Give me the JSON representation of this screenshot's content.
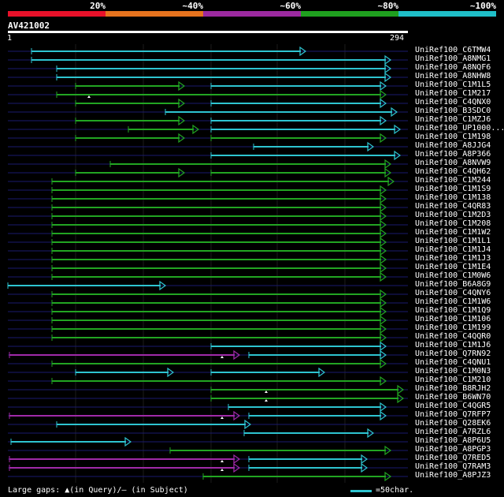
{
  "legend": {
    "colors": [
      "#e8112a",
      "#e6731e",
      "#9c2aa0",
      "#1fa01f",
      "#1fbfc8"
    ],
    "labels": [
      "20%",
      "~40%",
      "~60%",
      "~80%",
      "~100%"
    ]
  },
  "query": {
    "name": "AV421002",
    "start": "1",
    "end": "294"
  },
  "colors": {
    "cyan": "#2ec4d0",
    "green": "#22a522",
    "magenta": "#a02aa8",
    "gap": "#1a1a6e",
    "grid": "#1c1c1c"
  },
  "hits": [
    {
      "name": "UniRef100_C6TMW4",
      "segs": [
        [
          "cyan",
          40,
          388
        ]
      ]
    },
    {
      "name": "UniRef100_A8NMG1",
      "segs": [
        [
          "cyan",
          40,
          496
        ]
      ]
    },
    {
      "name": "UniRef100_A8NQF6",
      "segs": [
        [
          "cyan",
          72,
          496
        ]
      ]
    },
    {
      "name": "UniRef100_A8NHW8",
      "segs": [
        [
          "cyan",
          72,
          496
        ]
      ]
    },
    {
      "name": "UniRef100_C1M1L5",
      "segs": [
        [
          "green",
          96,
          234
        ],
        [
          "cyan",
          268,
          490
        ]
      ]
    },
    {
      "name": "UniRef100_C1M217",
      "segs": [
        [
          "green",
          72,
          490
        ]
      ],
      "marks": [
        113
      ]
    },
    {
      "name": "UniRef100_C4QNX0",
      "segs": [
        [
          "green",
          96,
          234
        ],
        [
          "cyan",
          268,
          490
        ]
      ]
    },
    {
      "name": "UniRef100_B3SDC0",
      "segs": [
        [
          "cyan",
          210,
          504
        ]
      ]
    },
    {
      "name": "UniRef100_C1MZJ6",
      "segs": [
        [
          "green",
          96,
          234
        ],
        [
          "cyan",
          268,
          490
        ]
      ]
    },
    {
      "name": "UniRef100_UP1000...",
      "segs": [
        [
          "green",
          163,
          252
        ],
        [
          "cyan",
          268,
          508
        ]
      ]
    },
    {
      "name": "UniRef100_C1M198",
      "segs": [
        [
          "green",
          96,
          234
        ],
        [
          "green",
          268,
          490
        ]
      ]
    },
    {
      "name": "UniRef100_A8JJG4",
      "segs": [
        [
          "cyan",
          322,
          474
        ]
      ]
    },
    {
      "name": "UniRef100_A8P366",
      "segs": [
        [
          "cyan",
          268,
          508
        ]
      ]
    },
    {
      "name": "UniRef100_A8NVW9",
      "segs": [
        [
          "green",
          140,
          496
        ]
      ]
    },
    {
      "name": "UniRef100_C4QH62",
      "segs": [
        [
          "green",
          96,
          234
        ],
        [
          "green",
          268,
          496
        ]
      ]
    },
    {
      "name": "UniRef100_C1M244",
      "segs": [
        [
          "green",
          66,
          500
        ]
      ]
    },
    {
      "name": "UniRef100_C1M1S9",
      "segs": [
        [
          "green",
          66,
          490
        ]
      ]
    },
    {
      "name": "UniRef100_C1M138",
      "segs": [
        [
          "green",
          66,
          490
        ]
      ]
    },
    {
      "name": "UniRef100_C4QR83",
      "segs": [
        [
          "green",
          66,
          490
        ]
      ]
    },
    {
      "name": "UniRef100_C1M2D3",
      "segs": [
        [
          "green",
          66,
          490
        ]
      ]
    },
    {
      "name": "UniRef100_C1M208",
      "segs": [
        [
          "green",
          66,
          490
        ]
      ]
    },
    {
      "name": "UniRef100_C1M1W2",
      "segs": [
        [
          "green",
          66,
          490
        ]
      ]
    },
    {
      "name": "UniRef100_C1M1L1",
      "segs": [
        [
          "green",
          66,
          490
        ]
      ]
    },
    {
      "name": "UniRef100_C1M1J4",
      "segs": [
        [
          "green",
          66,
          490
        ]
      ]
    },
    {
      "name": "UniRef100_C1M1J3",
      "segs": [
        [
          "green",
          66,
          490
        ]
      ]
    },
    {
      "name": "UniRef100_C1M1E4",
      "segs": [
        [
          "green",
          66,
          490
        ]
      ]
    },
    {
      "name": "UniRef100_C1M0W6",
      "segs": [
        [
          "green",
          66,
          490
        ]
      ]
    },
    {
      "name": "UniRef100_B6A8G9",
      "segs": [
        [
          "cyan",
          10,
          210
        ]
      ]
    },
    {
      "name": "UniRef100_C4QNY6",
      "segs": [
        [
          "green",
          66,
          490
        ]
      ]
    },
    {
      "name": "UniRef100_C1M1W6",
      "segs": [
        [
          "green",
          66,
          490
        ]
      ]
    },
    {
      "name": "UniRef100_C1M1Q9",
      "segs": [
        [
          "green",
          66,
          490
        ]
      ]
    },
    {
      "name": "UniRef100_C1M106",
      "segs": [
        [
          "green",
          66,
          490
        ]
      ]
    },
    {
      "name": "UniRef100_C1M199",
      "segs": [
        [
          "green",
          66,
          490
        ]
      ]
    },
    {
      "name": "UniRef100_C4QQR0",
      "segs": [
        [
          "green",
          66,
          490
        ]
      ]
    },
    {
      "name": "UniRef100_C1M1J6",
      "segs": [
        [
          "cyan",
          268,
          490
        ]
      ]
    },
    {
      "name": "UniRef100_Q7RN92",
      "segs": [
        [
          "magenta",
          12,
          304
        ],
        [
          "cyan",
          316,
          490
        ]
      ],
      "marks": [
        282
      ]
    },
    {
      "name": "UniRef100_C4QNU1",
      "segs": [
        [
          "green",
          66,
          490
        ]
      ]
    },
    {
      "name": "UniRef100_C1M0N3",
      "segs": [
        [
          "cyan",
          96,
          220
        ],
        [
          "cyan",
          268,
          412
        ]
      ]
    },
    {
      "name": "UniRef100_C1M210",
      "segs": [
        [
          "green",
          66,
          490
        ]
      ]
    },
    {
      "name": "UniRef100_B8RJH2",
      "segs": [
        [
          "green",
          268,
          512
        ]
      ],
      "marks": [
        338
      ]
    },
    {
      "name": "UniRef100_B6WN70",
      "segs": [
        [
          "green",
          268,
          512
        ]
      ],
      "marks": [
        338
      ]
    },
    {
      "name": "UniRef100_C4QGR5",
      "segs": [
        [
          "cyan",
          290,
          490
        ]
      ]
    },
    {
      "name": "UniRef100_Q7RFP7",
      "segs": [
        [
          "magenta",
          12,
          304
        ],
        [
          "cyan",
          316,
          490
        ]
      ],
      "marks": [
        282
      ]
    },
    {
      "name": "UniRef100_Q28EK6",
      "segs": [
        [
          "cyan",
          72,
          318
        ]
      ]
    },
    {
      "name": "UniRef100_A7RZL6",
      "segs": [
        [
          "cyan",
          310,
          474
        ]
      ]
    },
    {
      "name": "UniRef100_A8P6U5",
      "segs": [
        [
          "cyan",
          14,
          166
        ]
      ]
    },
    {
      "name": "UniRef100_A8PGP3",
      "segs": [
        [
          "green",
          216,
          496
        ]
      ]
    },
    {
      "name": "UniRef100_Q7RED5",
      "segs": [
        [
          "magenta",
          12,
          304
        ],
        [
          "cyan",
          316,
          466
        ]
      ],
      "marks": [
        282
      ]
    },
    {
      "name": "UniRef100_Q7RAM3",
      "segs": [
        [
          "magenta",
          12,
          304
        ],
        [
          "cyan",
          316,
          466
        ]
      ],
      "marks": [
        282
      ]
    },
    {
      "name": "UniRef100_A8PJZ3",
      "segs": [
        [
          "green",
          258,
          496
        ]
      ]
    }
  ],
  "footer": {
    "large_gaps": "Large gaps: ▲(in Query)/– (in Subject)",
    "scale": "=50char."
  }
}
